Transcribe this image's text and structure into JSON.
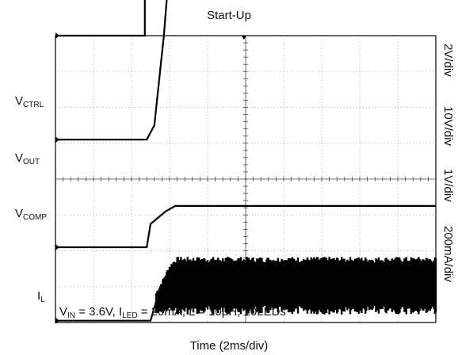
{
  "chart_data": {
    "type": "line",
    "title": "Start-Up",
    "xlabel": "Time (2ms/div)",
    "grid": true,
    "x_divisions": 10,
    "y_divisions": 8,
    "series": [
      {
        "name": "VCTRL",
        "label_main": "V",
        "label_sub": "CTRL",
        "scale": "2V/div",
        "x": [
          0,
          2.35,
          2.35,
          2.6,
          10
        ],
        "y": [
          4.0,
          4.0,
          6.66,
          6.66,
          6.66
        ]
      },
      {
        "name": "VOUT",
        "label_main": "V",
        "label_sub": "OUT",
        "scale": "10V/div",
        "x": [
          0,
          2.4,
          2.6,
          2.85,
          3.0,
          3.2,
          10
        ],
        "y": [
          1.1,
          1.1,
          1.5,
          4.0,
          6.0,
          6.3,
          6.3
        ]
      },
      {
        "name": "VCOMP",
        "label_main": "V",
        "label_sub": "COMP",
        "scale": "1V/div",
        "x": [
          0,
          2.4,
          2.5,
          2.9,
          3.15,
          10
        ],
        "y": [
          -1.9,
          -1.9,
          -1.25,
          -0.9,
          -0.75,
          -0.75
        ]
      },
      {
        "name": "IL",
        "label_main": "I",
        "label_sub": "L",
        "scale": "200mA/div",
        "x": [
          0,
          2.5,
          2.65,
          2.8,
          3.0,
          3.2,
          10
        ],
        "y": [
          -3.95,
          -3.95,
          -3.4,
          -3.2,
          -2.9,
          -2.8,
          -2.8
        ]
      }
    ],
    "annotation": {
      "vin_main": "V",
      "vin_sub": "IN",
      "vin_text": " = 3.6V, ",
      "iled_main": "I",
      "iled_sub": "LED",
      "iled_text": " = 20mA, L = 10μH, 10LEDs"
    }
  }
}
